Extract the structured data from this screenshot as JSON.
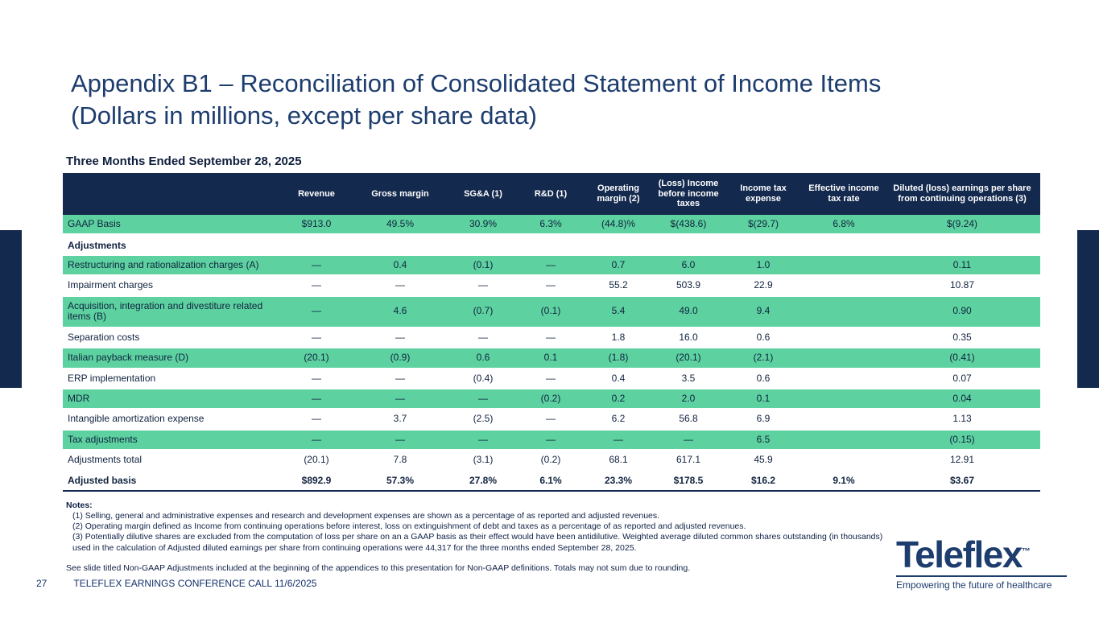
{
  "colors": {
    "navy": "#13294e",
    "title-navy": "#1d3d6e",
    "green": "#5dd2a0"
  },
  "slide": {
    "title_line1": "Appendix B1 – Reconciliation of Consolidated Statement of Income Items",
    "title_line2": "(Dollars in millions, except per share data)"
  },
  "table": {
    "caption": "Three Months Ended September 28, 2025",
    "columns": [
      {
        "label": ""
      },
      {
        "label": "Revenue"
      },
      {
        "label": "Gross margin"
      },
      {
        "label": "SG&A (1)"
      },
      {
        "label": "R&D (1)"
      },
      {
        "label": "Operating margin (2)"
      },
      {
        "label": "(Loss) Income before income taxes"
      },
      {
        "label": "Income tax expense"
      },
      {
        "label": "Effective income tax rate"
      },
      {
        "label": "Diluted (loss) earnings per share from continuing operations (3)"
      }
    ],
    "rows": [
      {
        "label": "GAAP Basis",
        "variant": "green",
        "cells": [
          "$913.0",
          "49.5%",
          "30.9%",
          "6.3%",
          "(44.8)%",
          "$(438.6)",
          "$(29.7)",
          "6.8%",
          "$(9.24)"
        ]
      },
      {
        "label": "Adjustments",
        "variant": "section",
        "cells": [
          "",
          "",
          "",
          "",
          "",
          "",
          "",
          "",
          ""
        ]
      },
      {
        "label": "Restructuring and rationalization charges (A)",
        "variant": "green",
        "cells": [
          "—",
          "0.4",
          "(0.1)",
          "—",
          "0.7",
          "6.0",
          "1.0",
          "",
          "0.11"
        ]
      },
      {
        "label": "Impairment charges",
        "variant": "white",
        "cells": [
          "—",
          "—",
          "—",
          "—",
          "55.2",
          "503.9",
          "22.9",
          "",
          "10.87"
        ]
      },
      {
        "label": "Acquisition, integration and divestiture related items (B)",
        "variant": "green",
        "cells": [
          "—",
          "4.6",
          "(0.7)",
          "(0.1)",
          "5.4",
          "49.0",
          "9.4",
          "",
          "0.90"
        ]
      },
      {
        "label": "Separation costs",
        "variant": "white",
        "cells": [
          "—",
          "—",
          "—",
          "—",
          "1.8",
          "16.0",
          "0.6",
          "",
          "0.35"
        ]
      },
      {
        "label": "Italian payback measure (D)",
        "variant": "green",
        "cells": [
          "(20.1)",
          "(0.9)",
          "0.6",
          "0.1",
          "(1.8)",
          "(20.1)",
          "(2.1)",
          "",
          "(0.41)"
        ]
      },
      {
        "label": "ERP implementation",
        "variant": "white",
        "cells": [
          "—",
          "—",
          "(0.4)",
          "—",
          "0.4",
          "3.5",
          "0.6",
          "",
          "0.07"
        ]
      },
      {
        "label": "MDR",
        "variant": "green",
        "cells": [
          "—",
          "—",
          "—",
          "(0.2)",
          "0.2",
          "2.0",
          "0.1",
          "",
          "0.04"
        ]
      },
      {
        "label": "Intangible amortization expense",
        "variant": "white",
        "cells": [
          "—",
          "3.7",
          "(2.5)",
          "—",
          "6.2",
          "56.8",
          "6.9",
          "",
          "1.13"
        ]
      },
      {
        "label": "Tax adjustments",
        "variant": "green",
        "cells": [
          "—",
          "—",
          "—",
          "—",
          "—",
          "—",
          "6.5",
          "",
          "(0.15)"
        ]
      },
      {
        "label": "Adjustments total",
        "variant": "white",
        "cells": [
          "(20.1)",
          "7.8",
          "(3.1)",
          "(0.2)",
          "68.1",
          "617.1",
          "45.9",
          "",
          "12.91"
        ]
      },
      {
        "label": "Adjusted basis",
        "variant": "adjusted",
        "cells": [
          "$892.9",
          "57.3%",
          "27.8%",
          "6.1%",
          "23.3%",
          "$178.5",
          "$16.2",
          "9.1%",
          "$3.67"
        ]
      }
    ]
  },
  "notes": {
    "heading": "Notes:",
    "items": [
      "(1) Selling, general and administrative expenses and research and development expenses are shown as a percentage of as reported and adjusted revenues.",
      "(2) Operating margin defined as Income from continuing operations before interest, loss on extinguishment of debt and taxes as a percentage of as reported and adjusted revenues.",
      "(3)  Potentially dilutive shares are excluded from the computation of loss per share on an a GAAP basis as their effect would have been antidilutive. Weighted average diluted common shares outstanding (in thousands) used in the calculation of Adjusted diluted earnings per share from continuing operations were 44,317 for the three months ended September 28, 2025."
    ],
    "disclaimer": "See slide titled Non-GAAP Adjustments included at the beginning of the appendices to this presentation for Non-GAAP definitions. Totals may not sum due to rounding."
  },
  "footer": {
    "page_number": "27",
    "text": "TELEFLEX EARNINGS CONFERENCE CALL 11/6/2025"
  },
  "logo": {
    "brand": "Teleflex",
    "trademark": "™",
    "tagline": "Empowering the future of healthcare"
  }
}
